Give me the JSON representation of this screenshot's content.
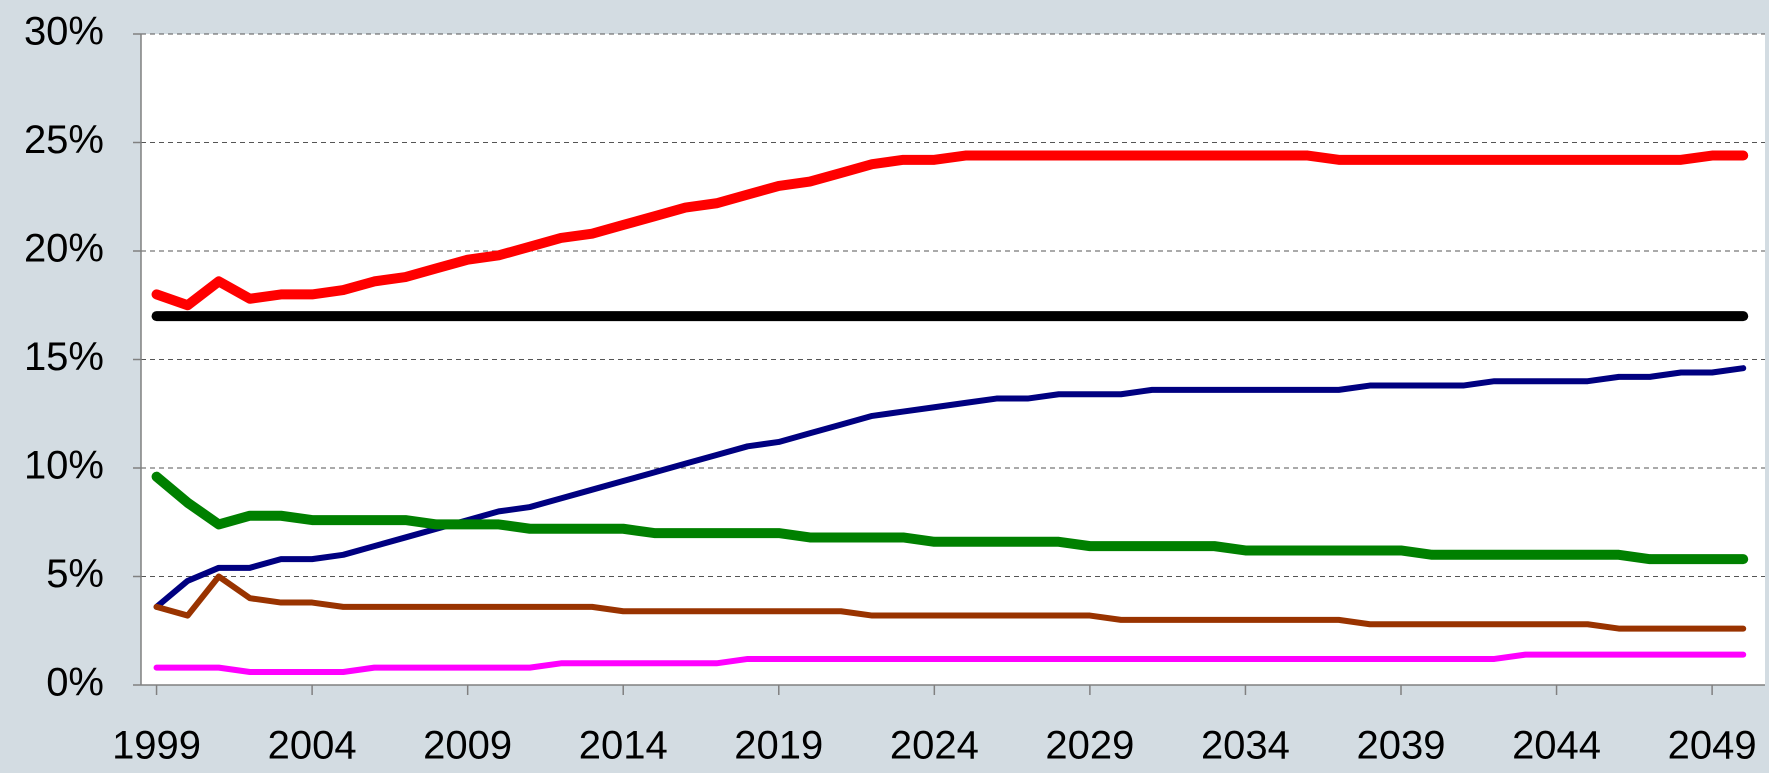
{
  "chart_data": {
    "type": "line",
    "x": [
      1999,
      2000,
      2001,
      2002,
      2003,
      2004,
      2005,
      2006,
      2007,
      2008,
      2009,
      2010,
      2011,
      2012,
      2013,
      2014,
      2015,
      2016,
      2017,
      2018,
      2019,
      2020,
      2021,
      2022,
      2023,
      2024,
      2025,
      2026,
      2027,
      2028,
      2029,
      2030,
      2031,
      2032,
      2033,
      2034,
      2035,
      2036,
      2037,
      2038,
      2039,
      2040,
      2041,
      2042,
      2043,
      2044,
      2045,
      2046,
      2047,
      2048,
      2049,
      2050
    ],
    "xlim": [
      1998.5,
      2050.7
    ],
    "xticks": [
      1999,
      2004,
      2009,
      2014,
      2019,
      2024,
      2029,
      2034,
      2039,
      2044,
      2049
    ],
    "ylim": [
      0,
      30
    ],
    "yticks": [
      {
        "value": 0,
        "label": "0%"
      },
      {
        "value": 5,
        "label": "5%"
      },
      {
        "value": 10,
        "label": "10%"
      },
      {
        "value": 15,
        "label": "15%"
      },
      {
        "value": 20,
        "label": "20%"
      },
      {
        "value": 25,
        "label": "25%"
      },
      {
        "value": 30,
        "label": "30%"
      }
    ],
    "grid": true,
    "series": [
      {
        "color": "#ff0000",
        "line_width": 10,
        "values": [
          18.0,
          17.5,
          18.6,
          17.8,
          18.0,
          18.0,
          18.2,
          18.6,
          18.8,
          19.2,
          19.6,
          19.8,
          20.2,
          20.6,
          20.8,
          21.2,
          21.6,
          22.0,
          22.2,
          22.6,
          23.0,
          23.2,
          23.6,
          24.0,
          24.2,
          24.2,
          24.4,
          24.4,
          24.4,
          24.4,
          24.4,
          24.4,
          24.4,
          24.4,
          24.4,
          24.4,
          24.4,
          24.4,
          24.2,
          24.2,
          24.2,
          24.2,
          24.2,
          24.2,
          24.2,
          24.2,
          24.2,
          24.2,
          24.2,
          24.2,
          24.4,
          24.4
        ]
      },
      {
        "color": "#000000",
        "line_width": 10,
        "values": [
          17,
          17,
          17,
          17,
          17,
          17,
          17,
          17,
          17,
          17,
          17,
          17,
          17,
          17,
          17,
          17,
          17,
          17,
          17,
          17,
          17,
          17,
          17,
          17,
          17,
          17,
          17,
          17,
          17,
          17,
          17,
          17,
          17,
          17,
          17,
          17,
          17,
          17,
          17,
          17,
          17,
          17,
          17,
          17,
          17,
          17,
          17,
          17,
          17,
          17,
          17,
          17
        ]
      },
      {
        "color": "#000080",
        "line_width": 6,
        "values": [
          3.6,
          4.8,
          5.4,
          5.4,
          5.8,
          5.8,
          6.0,
          6.4,
          6.8,
          7.2,
          7.6,
          8.0,
          8.2,
          8.6,
          9.0,
          9.4,
          9.8,
          10.2,
          10.6,
          11.0,
          11.2,
          11.6,
          12.0,
          12.4,
          12.6,
          12.8,
          13.0,
          13.2,
          13.2,
          13.4,
          13.4,
          13.4,
          13.6,
          13.6,
          13.6,
          13.6,
          13.6,
          13.6,
          13.6,
          13.8,
          13.8,
          13.8,
          13.8,
          14.0,
          14.0,
          14.0,
          14.0,
          14.2,
          14.2,
          14.4,
          14.4,
          14.6
        ]
      },
      {
        "color": "#008000",
        "line_width": 10,
        "values": [
          9.6,
          8.4,
          7.4,
          7.8,
          7.8,
          7.6,
          7.6,
          7.6,
          7.6,
          7.4,
          7.4,
          7.4,
          7.2,
          7.2,
          7.2,
          7.2,
          7.0,
          7.0,
          7.0,
          7.0,
          7.0,
          6.8,
          6.8,
          6.8,
          6.8,
          6.6,
          6.6,
          6.6,
          6.6,
          6.6,
          6.4,
          6.4,
          6.4,
          6.4,
          6.4,
          6.2,
          6.2,
          6.2,
          6.2,
          6.2,
          6.2,
          6.0,
          6.0,
          6.0,
          6.0,
          6.0,
          6.0,
          6.0,
          5.8,
          5.8,
          5.8,
          5.8
        ]
      },
      {
        "color": "#993300",
        "line_width": 6,
        "values": [
          3.6,
          3.2,
          5.0,
          4.0,
          3.8,
          3.8,
          3.6,
          3.6,
          3.6,
          3.6,
          3.6,
          3.6,
          3.6,
          3.6,
          3.6,
          3.4,
          3.4,
          3.4,
          3.4,
          3.4,
          3.4,
          3.4,
          3.4,
          3.2,
          3.2,
          3.2,
          3.2,
          3.2,
          3.2,
          3.2,
          3.2,
          3.0,
          3.0,
          3.0,
          3.0,
          3.0,
          3.0,
          3.0,
          3.0,
          2.8,
          2.8,
          2.8,
          2.8,
          2.8,
          2.8,
          2.8,
          2.8,
          2.6,
          2.6,
          2.6,
          2.6,
          2.6
        ]
      },
      {
        "color": "#ff00ff",
        "line_width": 6,
        "values": [
          0.8,
          0.8,
          0.8,
          0.6,
          0.6,
          0.6,
          0.6,
          0.8,
          0.8,
          0.8,
          0.8,
          0.8,
          0.8,
          1.0,
          1.0,
          1.0,
          1.0,
          1.0,
          1.0,
          1.2,
          1.2,
          1.2,
          1.2,
          1.2,
          1.2,
          1.2,
          1.2,
          1.2,
          1.2,
          1.2,
          1.2,
          1.2,
          1.2,
          1.2,
          1.2,
          1.2,
          1.2,
          1.2,
          1.2,
          1.2,
          1.2,
          1.2,
          1.2,
          1.2,
          1.4,
          1.4,
          1.4,
          1.4,
          1.4,
          1.4,
          1.4,
          1.4
        ]
      }
    ]
  }
}
